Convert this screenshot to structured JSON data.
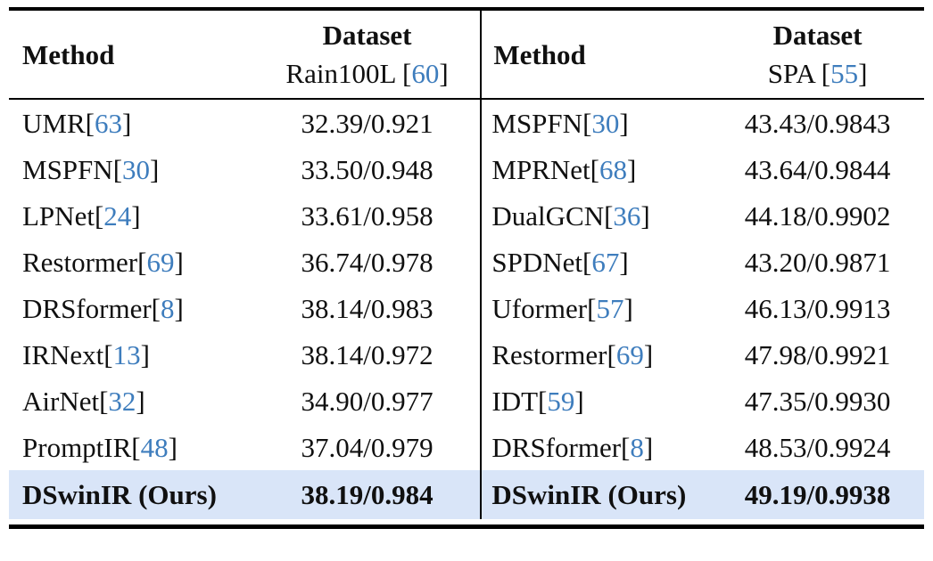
{
  "colors": {
    "citation_blue": "#3e7dbd",
    "highlight_row_bg": "#d9e5f8",
    "rule_black": "#000000"
  },
  "punct": {
    "open": "[",
    "close": "]"
  },
  "left": {
    "header": {
      "method": "Method",
      "dataset": "Dataset",
      "dataset_name": "Rain100L ",
      "dataset_cite": "60"
    },
    "rows": [
      {
        "m": "UMR ",
        "c": "63",
        "v": "32.39/0.921"
      },
      {
        "m": "MSPFN ",
        "c": "30",
        "v": "33.50/0.948"
      },
      {
        "m": "LPNet ",
        "c": "24",
        "v": "33.61/0.958"
      },
      {
        "m": "Restormer ",
        "c": "69",
        "v": "36.74/0.978"
      },
      {
        "m": "DRSformer ",
        "c": "8",
        "v": "38.14/0.983"
      },
      {
        "m": "IRNext ",
        "c": "13",
        "v": "38.14/0.972"
      },
      {
        "m": "AirNet ",
        "c": "32",
        "v": "34.90/0.977"
      },
      {
        "m": "PromptIR ",
        "c": "48",
        "v": "37.04/0.979"
      }
    ],
    "ours": {
      "m": "DSwinIR (Ours)",
      "v": "38.19/0.984"
    }
  },
  "right": {
    "header": {
      "method": "Method",
      "dataset": "Dataset",
      "dataset_name": "SPA ",
      "dataset_cite": "55"
    },
    "rows": [
      {
        "m": "MSPFN ",
        "c": "30",
        "v": "43.43/0.9843"
      },
      {
        "m": "MPRNet ",
        "c": "68",
        "v": "43.64/0.9844"
      },
      {
        "m": "DualGCN ",
        "c": "36",
        "v": "44.18/0.9902"
      },
      {
        "m": "SPDNet ",
        "c": "67",
        "v": "43.20/0.9871"
      },
      {
        "m": "Uformer ",
        "c": "57",
        "v": "46.13/0.9913"
      },
      {
        "m": "Restormer ",
        "c": "69",
        "v": "47.98/0.9921"
      },
      {
        "m": "IDT ",
        "c": "59",
        "v": "47.35/0.9930"
      },
      {
        "m": "DRSformer",
        "c": "8",
        "v": "48.53/0.9924"
      }
    ],
    "ours": {
      "m": "DSwinIR (Ours)",
      "v": "49.19/0.9938"
    }
  }
}
